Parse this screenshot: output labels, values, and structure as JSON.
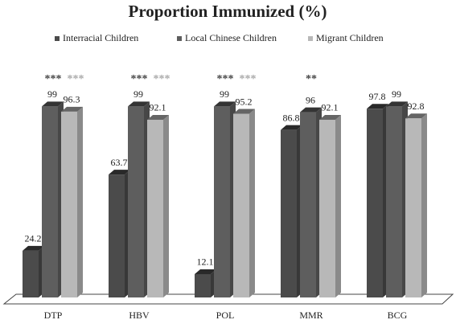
{
  "chart_data": {
    "type": "bar3d",
    "title": "Proportion Immunized (%)",
    "categories": [
      "DTP",
      "HBV",
      "POL",
      "MMR",
      "BCG"
    ],
    "ylim": [
      0,
      100
    ],
    "legend": "top",
    "series": [
      {
        "name": "Interracial Children",
        "color": "#4b4b4b",
        "values": [
          24.2,
          63.7,
          12.1,
          86.8,
          97.8
        ]
      },
      {
        "name": "Local Chinese Children",
        "color": "#5e5e5e",
        "values": [
          99,
          99,
          99,
          96,
          99
        ]
      },
      {
        "name": "Migrant Children",
        "color": "#b8b8b8",
        "values": [
          96.3,
          92.1,
          95.2,
          92.1,
          92.8
        ]
      }
    ],
    "annotations": [
      {
        "text": "***",
        "x": "DTP",
        "color": "#444444"
      },
      {
        "text": "***",
        "x": "DTP",
        "color": "#aaaaaa"
      },
      {
        "text": "***",
        "x": "HBV",
        "color": "#444444"
      },
      {
        "text": "***",
        "x": "HBV",
        "color": "#aaaaaa"
      },
      {
        "text": "***",
        "x": "POL",
        "color": "#444444"
      },
      {
        "text": "***",
        "x": "POL",
        "color": "#aaaaaa"
      },
      {
        "text": "**",
        "x": "MMR",
        "color": "#444444"
      }
    ]
  }
}
